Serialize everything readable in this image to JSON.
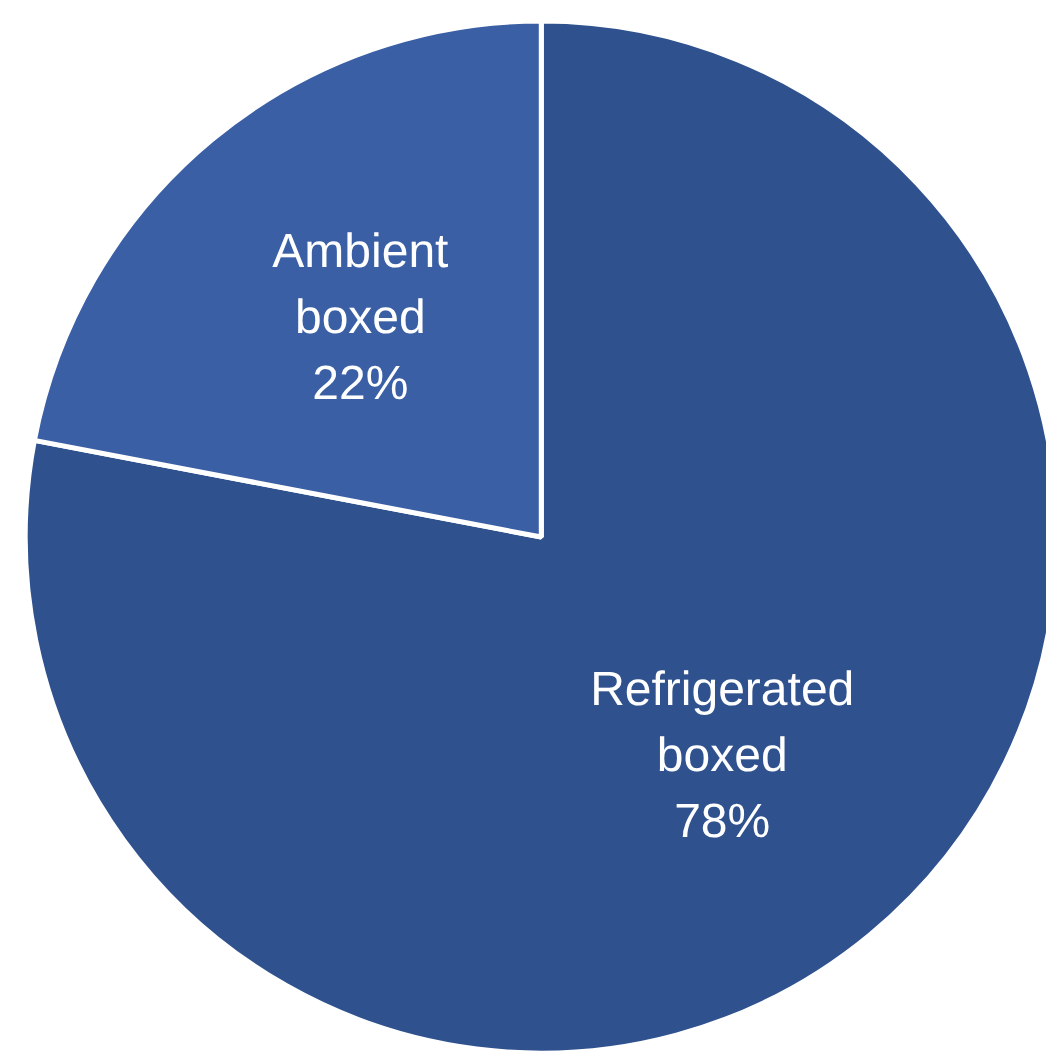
{
  "chart_data": {
    "type": "pie",
    "categories": [
      "Refrigerated boxed",
      "Ambient boxed"
    ],
    "values": [
      78,
      22
    ],
    "colors": [
      "#2f528f",
      "#3a5fa5"
    ],
    "value_labels": [
      "78%",
      "22%"
    ]
  }
}
